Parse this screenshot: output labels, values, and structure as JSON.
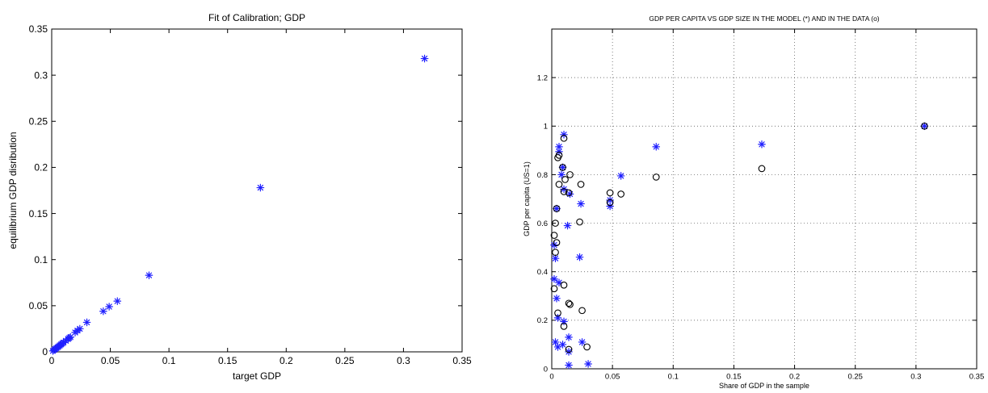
{
  "colors": {
    "star": "#1f1fff",
    "circle": "#000000",
    "axes": "#000000"
  },
  "chart_data": [
    {
      "type": "scatter",
      "title": "Fit of Calibration; GDP",
      "xlabel": "target GDP",
      "ylabel": "equilibrium GDP disribution",
      "xlim": [
        0,
        0.35
      ],
      "ylim": [
        0,
        0.35
      ],
      "xticks": [
        0,
        0.05,
        0.1,
        0.15,
        0.2,
        0.25,
        0.3,
        0.35
      ],
      "yticks": [
        0,
        0.05,
        0.1,
        0.15,
        0.2,
        0.25,
        0.3,
        0.35
      ],
      "tick_labels_x": [
        "0",
        "0.05",
        "0.1",
        "0.15",
        "0.2",
        "0.25",
        "0.3",
        "0.35"
      ],
      "tick_labels_y": [
        "0",
        "0.05",
        "0.1",
        "0.15",
        "0.2",
        "0.25",
        "0.3",
        "0.35"
      ],
      "grid": false,
      "series": [
        {
          "marker": "*",
          "points": [
            [
              0.001,
              0.001
            ],
            [
              0.002,
              0.002
            ],
            [
              0.003,
              0.003
            ],
            [
              0.004,
              0.004
            ],
            [
              0.005,
              0.005
            ],
            [
              0.006,
              0.006
            ],
            [
              0.007,
              0.007
            ],
            [
              0.008,
              0.008
            ],
            [
              0.009,
              0.009
            ],
            [
              0.01,
              0.01
            ],
            [
              0.012,
              0.012
            ],
            [
              0.014,
              0.014
            ],
            [
              0.015,
              0.015
            ],
            [
              0.016,
              0.016
            ],
            [
              0.02,
              0.021
            ],
            [
              0.022,
              0.023
            ],
            [
              0.024,
              0.025
            ],
            [
              0.03,
              0.032
            ],
            [
              0.044,
              0.044
            ],
            [
              0.049,
              0.049
            ],
            [
              0.056,
              0.055
            ],
            [
              0.083,
              0.083
            ],
            [
              0.178,
              0.178
            ],
            [
              0.318,
              0.318
            ]
          ]
        }
      ]
    },
    {
      "type": "scatter",
      "title": "GDP PER CAPITA VS GDP SIZE IN THE MODEL (*) AND IN THE DATA (o)",
      "xlabel": "Share of GDP in the sample",
      "ylabel": "GDP per capita (US=1)",
      "xlim": [
        0,
        0.35
      ],
      "ylim": [
        0,
        1.4
      ],
      "xticks": [
        0,
        0.05,
        0.1,
        0.15,
        0.2,
        0.25,
        0.3,
        0.35
      ],
      "yticks": [
        0,
        0.2,
        0.4,
        0.6,
        0.8,
        1,
        1.2
      ],
      "tick_labels_x": [
        "0",
        "0.05",
        "0.1",
        "0.15",
        "0.2",
        "0.25",
        "0.3",
        "0.35"
      ],
      "tick_labels_y": [
        "0",
        "0.2",
        "0.4",
        "0.6",
        "0.8",
        "1",
        "1.2"
      ],
      "grid": true,
      "series": [
        {
          "marker": "*",
          "points": [
            [
              0.307,
              1.0
            ],
            [
              0.173,
              0.925
            ],
            [
              0.086,
              0.915
            ],
            [
              0.057,
              0.795
            ],
            [
              0.048,
              0.67
            ],
            [
              0.048,
              0.695
            ],
            [
              0.024,
              0.68
            ],
            [
              0.023,
              0.46
            ],
            [
              0.013,
              0.59
            ],
            [
              0.015,
              0.72
            ],
            [
              0.01,
              0.965
            ],
            [
              0.006,
              0.915
            ],
            [
              0.006,
              0.895
            ],
            [
              0.009,
              0.83
            ],
            [
              0.008,
              0.8
            ],
            [
              0.01,
              0.74
            ],
            [
              0.004,
              0.66
            ],
            [
              0.002,
              0.51
            ],
            [
              0.003,
              0.455
            ],
            [
              0.002,
              0.37
            ],
            [
              0.006,
              0.355
            ],
            [
              0.004,
              0.29
            ],
            [
              0.005,
              0.21
            ],
            [
              0.01,
              0.195
            ],
            [
              0.014,
              0.13
            ],
            [
              0.025,
              0.11
            ],
            [
              0.009,
              0.1
            ],
            [
              0.003,
              0.11
            ],
            [
              0.005,
              0.09
            ],
            [
              0.014,
              0.07
            ],
            [
              0.014,
              0.015
            ],
            [
              0.03,
              0.02
            ]
          ]
        },
        {
          "marker": "o",
          "points": [
            [
              0.307,
              1.0
            ],
            [
              0.173,
              0.825
            ],
            [
              0.086,
              0.79
            ],
            [
              0.057,
              0.72
            ],
            [
              0.048,
              0.725
            ],
            [
              0.048,
              0.685
            ],
            [
              0.024,
              0.76
            ],
            [
              0.023,
              0.605
            ],
            [
              0.015,
              0.8
            ],
            [
              0.014,
              0.725
            ],
            [
              0.01,
              0.95
            ],
            [
              0.006,
              0.88
            ],
            [
              0.009,
              0.83
            ],
            [
              0.01,
              0.73
            ],
            [
              0.011,
              0.78
            ],
            [
              0.006,
              0.76
            ],
            [
              0.004,
              0.66
            ],
            [
              0.003,
              0.6
            ],
            [
              0.004,
              0.52
            ],
            [
              0.002,
              0.55
            ],
            [
              0.003,
              0.48
            ],
            [
              0.002,
              0.33
            ],
            [
              0.01,
              0.345
            ],
            [
              0.005,
              0.23
            ],
            [
              0.015,
              0.265
            ],
            [
              0.025,
              0.24
            ],
            [
              0.01,
              0.175
            ],
            [
              0.014,
              0.27
            ],
            [
              0.029,
              0.09
            ],
            [
              0.014,
              0.08
            ],
            [
              0.005,
              0.87
            ]
          ]
        }
      ]
    }
  ]
}
